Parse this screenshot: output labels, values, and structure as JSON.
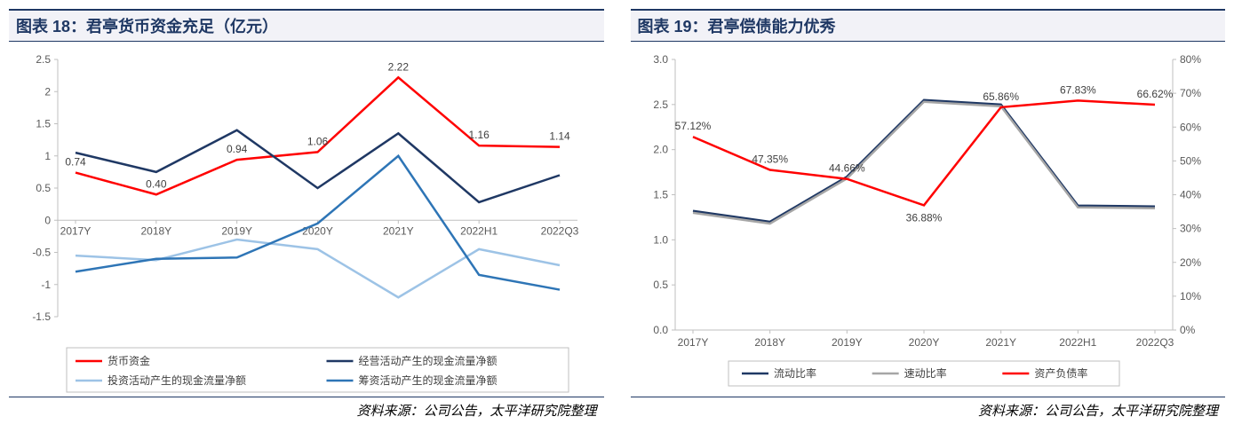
{
  "chart_left": {
    "type": "line",
    "title": "图表 18：君亭货币资金充足（亿元）",
    "footer": "资料来源：公司公告，太平洋研究院整理",
    "categories": [
      "2017Y",
      "2018Y",
      "2019Y",
      "2020Y",
      "2021Y",
      "2022H1",
      "2022Q3"
    ],
    "ylim": [
      -1.5,
      2.5
    ],
    "ytick_step": 0.5,
    "background_color": "#ffffff",
    "grid_color": "none",
    "axis_color": "#bfbfbf",
    "label_fontsize": 12,
    "line_width": 2.5,
    "series": [
      {
        "name": "货币资金",
        "color": "#ff0000",
        "values": [
          0.74,
          0.4,
          0.94,
          1.06,
          2.22,
          1.16,
          1.14
        ],
        "show_labels": true
      },
      {
        "name": "经营活动产生的现金流量净额",
        "color": "#1f3864",
        "values": [
          1.05,
          0.75,
          1.4,
          0.5,
          1.35,
          0.28,
          0.7
        ],
        "show_labels": false
      },
      {
        "name": "投资活动产生的现金流量净额",
        "color": "#9dc3e6",
        "values": [
          -0.55,
          -0.62,
          -0.3,
          -0.45,
          -1.2,
          -0.45,
          -0.7
        ],
        "show_labels": false
      },
      {
        "name": "筹资活动产生的现金流量净额",
        "color": "#2e75b6",
        "values": [
          -0.8,
          -0.6,
          -0.58,
          -0.05,
          1.0,
          -0.85,
          -1.08
        ],
        "show_labels": false
      }
    ],
    "legend_cols": 2
  },
  "chart_right": {
    "type": "line-dual-axis",
    "title": "图表 19：君亭偿债能力优秀",
    "footer": "资料来源：公司公告，太平洋研究院整理",
    "categories": [
      "2017Y",
      "2018Y",
      "2019Y",
      "2020Y",
      "2021Y",
      "2022H1",
      "2022Q3"
    ],
    "ylim_left": [
      0,
      3.0
    ],
    "ytick_step_left": 0.5,
    "ylim_right": [
      0,
      80
    ],
    "ytick_step_right": 10,
    "right_suffix": "%",
    "background_color": "#ffffff",
    "axis_color": "#bfbfbf",
    "label_fontsize": 12,
    "line_width": 2.5,
    "series": [
      {
        "name": "流动比率",
        "color": "#1f3864",
        "axis": "left",
        "values": [
          1.32,
          1.2,
          1.7,
          2.55,
          2.5,
          1.38,
          1.37
        ],
        "show_labels": false
      },
      {
        "name": "速动比率",
        "color": "#a6a6a6",
        "axis": "left",
        "values": [
          1.3,
          1.18,
          1.68,
          2.53,
          2.48,
          1.36,
          1.35
        ],
        "show_labels": false
      },
      {
        "name": "资产负债率",
        "color": "#ff0000",
        "axis": "right",
        "values": [
          57.12,
          47.35,
          44.66,
          36.88,
          65.86,
          67.83,
          66.62
        ],
        "show_labels": true,
        "label_suffix": "%"
      }
    ],
    "legend_cols": 3
  }
}
